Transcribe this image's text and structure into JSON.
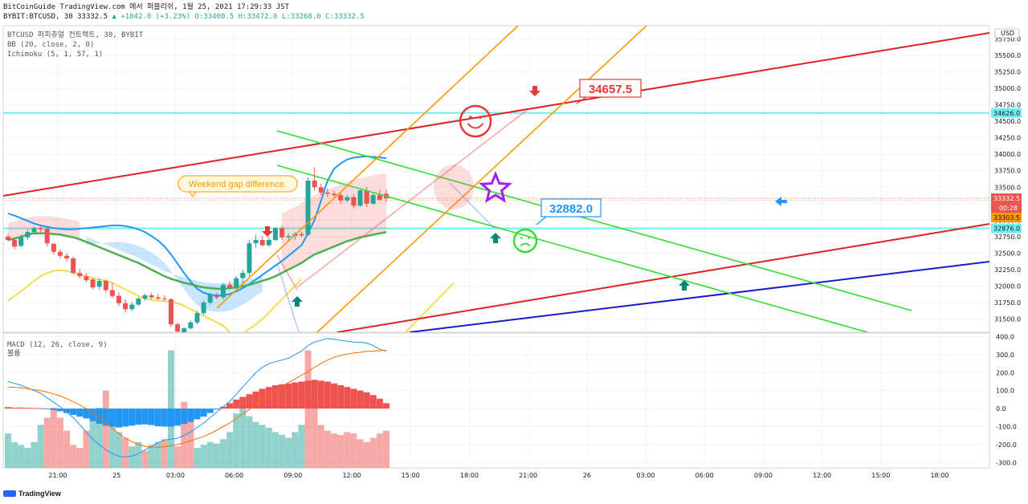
{
  "header": {
    "title_line": "BitCoinGuide TradingView.com 에서 퍼블리쉬, 1월 25, 2021 17:29:33 JST",
    "symbol_line": "BYBIT:BTCUSD, 30",
    "price": "33332.5",
    "change": "▲ +1042.0 (+3.23%)",
    "ohlc": "O:33400.5 H:33472.0 L:33268.0 C:33332.5"
  },
  "legend": {
    "line1": "BTCUSD 퍼피츄얼 컨트랙트, 30, BYBIT",
    "line2": "BB (20, close, 2, 0)",
    "line3": "Ichimoku (5, 1, 57, 1)",
    "macd_line": "MACD (12, 26, close, 9)",
    "volume_line": "볼륨"
  },
  "currency": "USD",
  "annotations": {
    "weekend": "Weekend gap difference.",
    "target_up": "34657.5",
    "target_down": "32882.0"
  },
  "price_tags": {
    "last": "33332.5",
    "countdown": "00:28",
    "other": "33303.5",
    "level_high": "34626.0",
    "level_low": "32876.0"
  },
  "footer": {
    "brand": "TradingView"
  },
  "colors": {
    "bull": "#26a69a",
    "bear": "#ef5350",
    "bb": "#2196f3",
    "ichimoku_base": "#4caf50",
    "tenkan": "#f5d327",
    "trend_red": "#e02020",
    "trend_green": "#33dd33",
    "trend_orange": "#ff9800",
    "trend_blue": "#1a1acd",
    "level": "#6ff0f0"
  },
  "chart_data": [
    {
      "type": "candlestick",
      "title": "BTCUSD 퍼피츄얼 컨트랙트, 30, BYBIT",
      "x_ticks": [
        "21:00",
        "25",
        "03:00",
        "06:00",
        "09:00",
        "12:00",
        "15:00",
        "18:00",
        "21:00",
        "26",
        "03:00",
        "06:00",
        "09:00",
        "12:00",
        "15:00",
        "18:00"
      ],
      "y_ticks": [
        31500,
        31750,
        32000,
        32250,
        32500,
        32750,
        33000,
        33250,
        33500,
        33750,
        34000,
        34250,
        34500,
        34750,
        35000,
        35250,
        35500,
        35750
      ],
      "ylim": [
        31300,
        35950
      ],
      "candles": [
        {
          "o": 32750,
          "h": 32790,
          "l": 32680,
          "c": 32700
        },
        {
          "o": 32700,
          "h": 32740,
          "l": 32560,
          "c": 32600
        },
        {
          "o": 32610,
          "h": 32780,
          "l": 32590,
          "c": 32740
        },
        {
          "o": 32740,
          "h": 32860,
          "l": 32700,
          "c": 32820
        },
        {
          "o": 32820,
          "h": 32900,
          "l": 32780,
          "c": 32880
        },
        {
          "o": 32880,
          "h": 32920,
          "l": 32820,
          "c": 32860
        },
        {
          "o": 32870,
          "h": 32890,
          "l": 32600,
          "c": 32650
        },
        {
          "o": 32640,
          "h": 32660,
          "l": 32480,
          "c": 32520
        },
        {
          "o": 32520,
          "h": 32560,
          "l": 32420,
          "c": 32460
        },
        {
          "o": 32460,
          "h": 32500,
          "l": 32380,
          "c": 32420
        },
        {
          "o": 32420,
          "h": 32450,
          "l": 32180,
          "c": 32200
        },
        {
          "o": 32200,
          "h": 32260,
          "l": 32120,
          "c": 32150
        },
        {
          "o": 32150,
          "h": 32200,
          "l": 32060,
          "c": 32090
        },
        {
          "o": 32100,
          "h": 32120,
          "l": 31950,
          "c": 31980
        },
        {
          "o": 31990,
          "h": 32120,
          "l": 31940,
          "c": 32080
        },
        {
          "o": 32080,
          "h": 32100,
          "l": 31900,
          "c": 31940
        },
        {
          "o": 31940,
          "h": 32050,
          "l": 31820,
          "c": 31850
        },
        {
          "o": 31850,
          "h": 31900,
          "l": 31700,
          "c": 31740
        },
        {
          "o": 31740,
          "h": 31800,
          "l": 31600,
          "c": 31650
        },
        {
          "o": 31650,
          "h": 31760,
          "l": 31620,
          "c": 31720
        },
        {
          "o": 31720,
          "h": 31830,
          "l": 31700,
          "c": 31810
        },
        {
          "o": 31810,
          "h": 31880,
          "l": 31780,
          "c": 31860
        },
        {
          "o": 31860,
          "h": 31900,
          "l": 31800,
          "c": 31830
        },
        {
          "o": 31830,
          "h": 31880,
          "l": 31790,
          "c": 31810
        },
        {
          "o": 31810,
          "h": 31860,
          "l": 31780,
          "c": 31800
        },
        {
          "o": 31800,
          "h": 31820,
          "l": 31380,
          "c": 31420
        },
        {
          "o": 31420,
          "h": 31450,
          "l": 31280,
          "c": 31310
        },
        {
          "o": 31300,
          "h": 31380,
          "l": 31250,
          "c": 31360
        },
        {
          "o": 31360,
          "h": 31480,
          "l": 31340,
          "c": 31450
        },
        {
          "o": 31450,
          "h": 31620,
          "l": 31420,
          "c": 31590
        },
        {
          "o": 31590,
          "h": 31780,
          "l": 31560,
          "c": 31750
        },
        {
          "o": 31750,
          "h": 31900,
          "l": 31720,
          "c": 31870
        },
        {
          "o": 31860,
          "h": 31900,
          "l": 31800,
          "c": 31830
        },
        {
          "o": 31830,
          "h": 32050,
          "l": 31800,
          "c": 32020
        },
        {
          "o": 32020,
          "h": 32080,
          "l": 31950,
          "c": 31980
        },
        {
          "o": 31980,
          "h": 32150,
          "l": 31960,
          "c": 32120
        },
        {
          "o": 32120,
          "h": 32250,
          "l": 32050,
          "c": 32200
        },
        {
          "o": 32200,
          "h": 32700,
          "l": 32150,
          "c": 32650
        },
        {
          "o": 32650,
          "h": 32780,
          "l": 32580,
          "c": 32700
        },
        {
          "o": 32700,
          "h": 32760,
          "l": 32600,
          "c": 32620
        },
        {
          "o": 32620,
          "h": 32740,
          "l": 32600,
          "c": 32700
        },
        {
          "o": 32700,
          "h": 32900,
          "l": 32680,
          "c": 32880
        },
        {
          "o": 32880,
          "h": 32920,
          "l": 32700,
          "c": 32740
        },
        {
          "o": 32740,
          "h": 32800,
          "l": 32680,
          "c": 32760
        },
        {
          "o": 32760,
          "h": 32820,
          "l": 32700,
          "c": 32790
        },
        {
          "o": 32790,
          "h": 32830,
          "l": 32740,
          "c": 32770
        },
        {
          "o": 32780,
          "h": 33650,
          "l": 32760,
          "c": 33600
        },
        {
          "o": 33600,
          "h": 33800,
          "l": 33450,
          "c": 33500
        },
        {
          "o": 33500,
          "h": 33550,
          "l": 33380,
          "c": 33420
        },
        {
          "o": 33420,
          "h": 33480,
          "l": 33350,
          "c": 33400
        },
        {
          "o": 33400,
          "h": 33450,
          "l": 33330,
          "c": 33380
        },
        {
          "o": 33380,
          "h": 33420,
          "l": 33250,
          "c": 33300
        },
        {
          "o": 33300,
          "h": 33380,
          "l": 33270,
          "c": 33350
        },
        {
          "o": 33350,
          "h": 33400,
          "l": 33180,
          "c": 33220
        },
        {
          "o": 33220,
          "h": 33480,
          "l": 33200,
          "c": 33450
        },
        {
          "o": 33450,
          "h": 33500,
          "l": 33200,
          "c": 33250
        },
        {
          "o": 33250,
          "h": 33420,
          "l": 33230,
          "c": 33380
        },
        {
          "o": 33380,
          "h": 33460,
          "l": 33290,
          "c": 33310
        },
        {
          "o": 33400,
          "h": 33472,
          "l": 33268,
          "c": 33332.5
        }
      ],
      "bollinger_mid": [
        33100,
        33070,
        33030,
        32990,
        32950,
        32920,
        32900,
        32880,
        32870,
        32860,
        32860,
        32870,
        32880,
        32890,
        32900,
        32910,
        32920,
        32920,
        32910,
        32890,
        32860,
        32820,
        32760,
        32690,
        32600,
        32480,
        32340,
        32200,
        32070,
        31960,
        31900,
        31870,
        31860,
        31860,
        31880,
        31920,
        31970,
        32030,
        32100,
        32170,
        32240,
        32310,
        32380,
        32460,
        32540,
        32620,
        32800,
        33000,
        33300,
        33600,
        33780,
        33860,
        33920,
        33950,
        33960,
        33970,
        33960,
        33950,
        33940
      ],
      "ichimoku_base": [
        32700,
        32720,
        32750,
        32780,
        32800,
        32800,
        32800,
        32790,
        32780,
        32760,
        32740,
        32710,
        32670,
        32630,
        32590,
        32550,
        32510,
        32470,
        32430,
        32390,
        32350,
        32300,
        32250,
        32200,
        32150,
        32110,
        32080,
        32050,
        32030,
        32000,
        31980,
        31970,
        31960,
        31960,
        31970,
        31980,
        32000,
        32020,
        32050,
        32080,
        32110,
        32150,
        32200,
        32250,
        32300,
        32350,
        32420,
        32480,
        32520,
        32560,
        32600,
        32640,
        32680,
        32710,
        32740,
        32760,
        32780,
        32800,
        32820
      ],
      "tenkan": [
        31780,
        31850,
        31920,
        32000,
        32080,
        32150,
        32200,
        32230,
        32240,
        32230,
        32200,
        32180,
        32150,
        32120,
        32100,
        32080,
        32050,
        32000,
        31950,
        31900,
        31850,
        31810,
        31790,
        31780,
        31770,
        31760,
        31740,
        31700,
        31650,
        31600,
        31550,
        31500,
        31450,
        31400,
        31300,
        31250,
        31280,
        31350,
        31420,
        31500,
        31600,
        31700,
        31800,
        31900,
        32000,
        32100
      ],
      "horizontal_levels": [
        34626.0,
        32876.0,
        33332.5,
        33303.5
      ]
    },
    {
      "type": "macd_volume",
      "title": "MACD (12, 26, close, 9)",
      "y_ticks": [
        400,
        300,
        200,
        100,
        0,
        -100,
        -200,
        -300
      ],
      "ylim": [
        -330,
        420
      ],
      "histogram": [
        8,
        5,
        6,
        4,
        3,
        2,
        -1,
        -8,
        -15,
        -25,
        -35,
        -45,
        -55,
        -70,
        -85,
        -95,
        -100,
        -105,
        -100,
        -95,
        -90,
        -88,
        -92,
        -98,
        -100,
        -100,
        -95,
        -85,
        -75,
        -60,
        -45,
        -25,
        -5,
        10,
        30,
        50,
        65,
        80,
        95,
        110,
        120,
        130,
        135,
        140,
        145,
        150,
        155,
        160,
        155,
        150,
        140,
        130,
        120,
        110,
        100,
        90,
        75,
        55,
        30
      ],
      "macd_line": [
        150,
        140,
        130,
        115,
        100,
        85,
        60,
        35,
        10,
        -20,
        -50,
        -90,
        -130,
        -170,
        -200,
        -230,
        -250,
        -265,
        -270,
        -265,
        -250,
        -230,
        -210,
        -190,
        -175,
        -170,
        -165,
        -150,
        -130,
        -105,
        -80,
        -50,
        -20,
        10,
        40,
        80,
        120,
        160,
        200,
        230,
        250,
        260,
        270,
        280,
        300,
        320,
        350,
        370,
        380,
        390,
        385,
        380,
        375,
        370,
        368,
        365,
        350,
        330,
        320
      ],
      "signal_line": [
        120,
        118,
        115,
        110,
        105,
        100,
        92,
        82,
        70,
        55,
        38,
        20,
        0,
        -25,
        -50,
        -80,
        -110,
        -140,
        -165,
        -185,
        -200,
        -210,
        -215,
        -215,
        -212,
        -207,
        -200,
        -190,
        -180,
        -168,
        -155,
        -140,
        -120,
        -100,
        -80,
        -55,
        -30,
        -5,
        20,
        45,
        70,
        95,
        120,
        145,
        165,
        185,
        205,
        230,
        250,
        270,
        285,
        295,
        303,
        309,
        313,
        318,
        320,
        322,
        325
      ],
      "volume": [
        240,
        180,
        160,
        140,
        180,
        300,
        350,
        420,
        350,
        260,
        160,
        140,
        260,
        380,
        420,
        540,
        300,
        250,
        210,
        150,
        180,
        120,
        160,
        180,
        200,
        820,
        150,
        460,
        320,
        140,
        160,
        180,
        170,
        200,
        250,
        380,
        440,
        360,
        320,
        300,
        280,
        250,
        230,
        210,
        250,
        300,
        820,
        500,
        300,
        260,
        240,
        230,
        250,
        240,
        200,
        180,
        210,
        240,
        260
      ]
    }
  ]
}
